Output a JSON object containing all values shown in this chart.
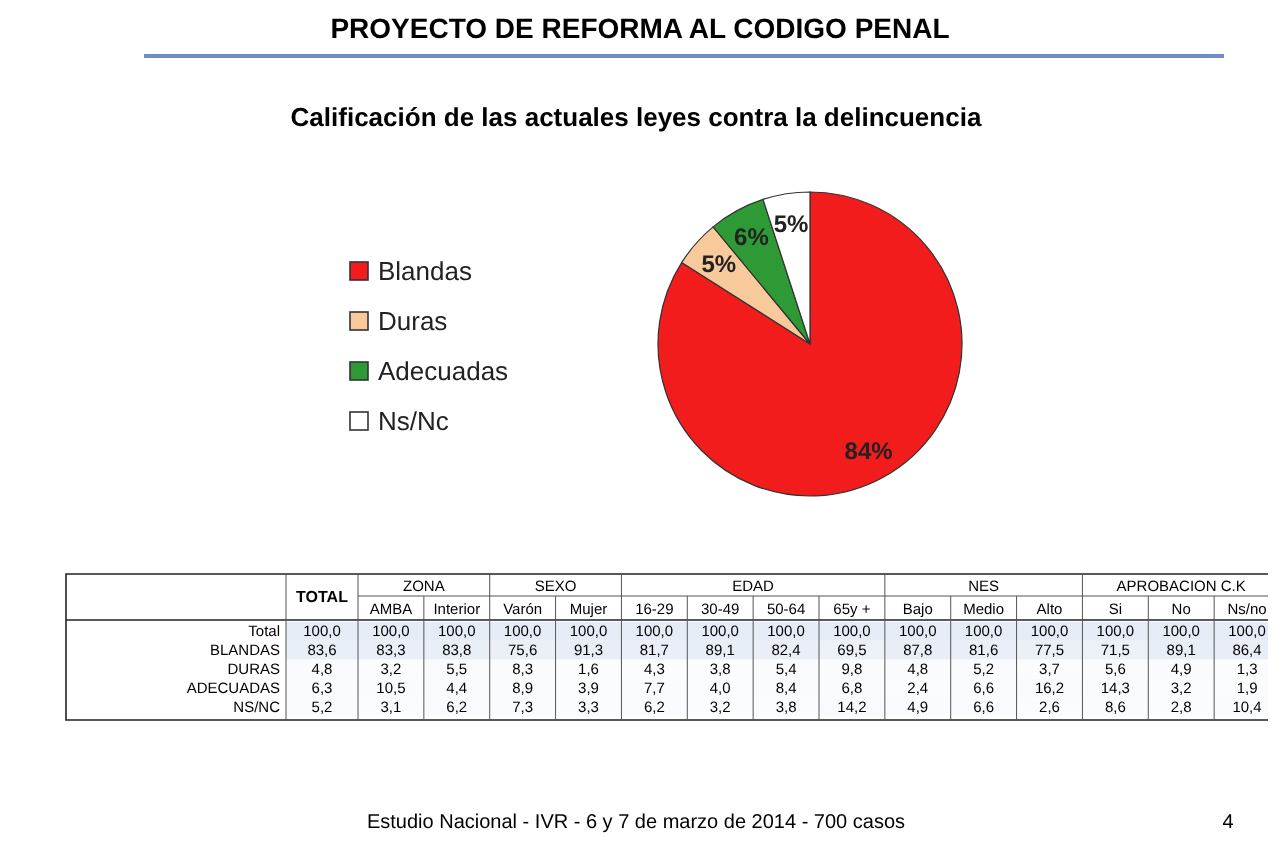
{
  "chart_data": [
    {
      "type": "pie",
      "title": "Calificación de las actuales leyes contra la delincuencia",
      "categories": [
        "Blandas",
        "Duras",
        "Adecuadas",
        "Ns/Nc"
      ],
      "values": [
        84,
        5,
        6,
        5
      ],
      "colors": [
        "#f21c1c",
        "#f7c99b",
        "#2e9a35",
        "#ffffff"
      ],
      "value_labels": [
        "84%",
        "5%",
        "6%",
        "5%"
      ],
      "legend": "left",
      "annotations": [
        "PROYECTO DE REFORMA AL CODIGO PENAL",
        "Estudio Nacional - IVR - 6 y 7 de marzo de 2014 - 700 casos",
        "4"
      ]
    },
    {
      "type": "heatmap",
      "categories": [
        "TOTAL",
        "AMBA",
        "Interior",
        "Varón",
        "Mujer",
        "16-29",
        "30-49",
        "50-64",
        "65y +",
        "Bajo",
        "Medio",
        "Alto",
        "Si",
        "No",
        "Ns/no"
      ],
      "y_categories": [
        "Total",
        "BLANDAS",
        "DURAS",
        "ADECUADAS",
        "NS/NC"
      ],
      "cells": [
        [
          100,
          100,
          100,
          100,
          100,
          100,
          100,
          100,
          100,
          100,
          100,
          100,
          100,
          100,
          100
        ],
        [
          83.6,
          83.3,
          83.8,
          75.6,
          91.3,
          81.7,
          89.1,
          82.4,
          69.5,
          87.8,
          81.6,
          77.5,
          71.5,
          89.1,
          86.4
        ],
        [
          4.8,
          3.2,
          5.5,
          8.3,
          1.6,
          4.3,
          3.8,
          5.4,
          9.8,
          4.8,
          5.2,
          3.7,
          5.6,
          4.9,
          1.3
        ],
        [
          6.3,
          10.5,
          4.4,
          8.9,
          3.9,
          7.7,
          4.0,
          8.4,
          6.8,
          2.4,
          6.6,
          16.2,
          14.3,
          3.2,
          1.9
        ],
        [
          5.2,
          3.1,
          6.2,
          7.3,
          3.3,
          6.2,
          3.2,
          3.8,
          14.2,
          4.9,
          6.6,
          2.6,
          8.6,
          2.8,
          10.4
        ]
      ],
      "cell_labels": [
        [
          "100,0",
          "100,0",
          "100,0",
          "100,0",
          "100,0",
          "100,0",
          "100,0",
          "100,0",
          "100,0",
          "100,0",
          "100,0",
          "100,0",
          "100,0",
          "100,0",
          "100,0"
        ],
        [
          "83,6",
          "83,3",
          "83,8",
          "75,6",
          "91,3",
          "81,7",
          "89,1",
          "82,4",
          "69,5",
          "87,8",
          "81,6",
          "77,5",
          "71,5",
          "89,1",
          "86,4"
        ],
        [
          "4,8",
          "3,2",
          "5,5",
          "8,3",
          "1,6",
          "4,3",
          "3,8",
          "5,4",
          "9,8",
          "4,8",
          "5,2",
          "3,7",
          "5,6",
          "4,9",
          "1,3"
        ],
        [
          "6,3",
          "10,5",
          "4,4",
          "8,9",
          "3,9",
          "7,7",
          "4,0",
          "8,4",
          "6,8",
          "2,4",
          "6,6",
          "16,2",
          "14,3",
          "3,2",
          "1,9"
        ],
        [
          "5,2",
          "3,1",
          "6,2",
          "7,3",
          "3,3",
          "6,2",
          "3,2",
          "3,8",
          "14,2",
          "4,9",
          "6,6",
          "2,6",
          "8,6",
          "2,8",
          "10,4"
        ]
      ],
      "annotations": [
        "ZONA",
        "SEXO",
        "EDAD",
        "NES",
        "APROBACION C.K"
      ]
    }
  ]
}
